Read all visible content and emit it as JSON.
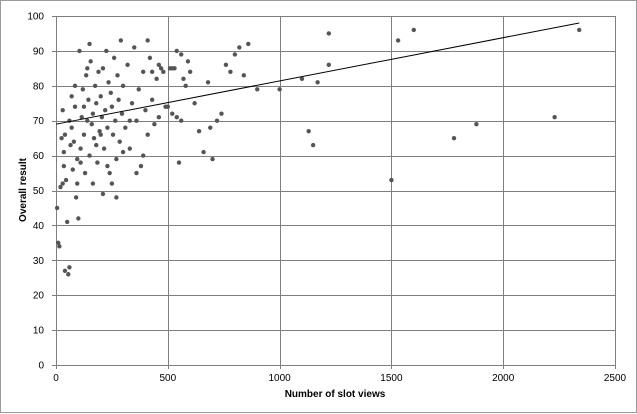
{
  "chart_data": {
    "type": "scatter",
    "title": "",
    "xlabel": "Number of slot views",
    "ylabel": "Overall result",
    "xlim": [
      0,
      2500
    ],
    "ylim": [
      0,
      100
    ],
    "xticks": [
      0,
      500,
      1000,
      1500,
      2000,
      2500
    ],
    "yticks": [
      0,
      10,
      20,
      30,
      40,
      50,
      60,
      70,
      80,
      90,
      100
    ],
    "grid": true,
    "legend": "none",
    "point_color": "#555555",
    "trendline": {
      "x": [
        0,
        2340
      ],
      "y": [
        69,
        98
      ]
    },
    "series": [
      {
        "points": [
          [
            5,
            45
          ],
          [
            10,
            35
          ],
          [
            15,
            34
          ],
          [
            20,
            51
          ],
          [
            25,
            65
          ],
          [
            30,
            73
          ],
          [
            35,
            57
          ],
          [
            40,
            27
          ],
          [
            45,
            53
          ],
          [
            50,
            41
          ],
          [
            55,
            26
          ],
          [
            60,
            28
          ],
          [
            65,
            63
          ],
          [
            70,
            68
          ],
          [
            75,
            56
          ],
          [
            80,
            64
          ],
          [
            85,
            74
          ],
          [
            90,
            48
          ],
          [
            95,
            59
          ],
          [
            100,
            42
          ],
          [
            105,
            90
          ],
          [
            110,
            62
          ],
          [
            115,
            71
          ],
          [
            120,
            79
          ],
          [
            125,
            66
          ],
          [
            130,
            55
          ],
          [
            135,
            83
          ],
          [
            140,
            70
          ],
          [
            145,
            76
          ],
          [
            150,
            60
          ],
          [
            155,
            87
          ],
          [
            160,
            69
          ],
          [
            165,
            72
          ],
          [
            170,
            65
          ],
          [
            175,
            80
          ],
          [
            180,
            75
          ],
          [
            185,
            58
          ],
          [
            190,
            84
          ],
          [
            195,
            67
          ],
          [
            200,
            77
          ],
          [
            205,
            71
          ],
          [
            210,
            85
          ],
          [
            215,
            62
          ],
          [
            220,
            73
          ],
          [
            225,
            90
          ],
          [
            230,
            68
          ],
          [
            235,
            81
          ],
          [
            240,
            55
          ],
          [
            245,
            78
          ],
          [
            250,
            74
          ],
          [
            255,
            66
          ],
          [
            260,
            88
          ],
          [
            265,
            70
          ],
          [
            270,
            59
          ],
          [
            275,
            83
          ],
          [
            280,
            76
          ],
          [
            285,
            64
          ],
          [
            290,
            93
          ],
          [
            295,
            72
          ],
          [
            300,
            80
          ],
          [
            310,
            68
          ],
          [
            320,
            86
          ],
          [
            330,
            62
          ],
          [
            340,
            75
          ],
          [
            350,
            91
          ],
          [
            360,
            70
          ],
          [
            370,
            79
          ],
          [
            380,
            57
          ],
          [
            390,
            84
          ],
          [
            400,
            73
          ],
          [
            410,
            66
          ],
          [
            420,
            88
          ],
          [
            430,
            76
          ],
          [
            440,
            69
          ],
          [
            450,
            82
          ],
          [
            460,
            86
          ],
          [
            470,
            85
          ],
          [
            480,
            84
          ],
          [
            500,
            74
          ],
          [
            510,
            85
          ],
          [
            520,
            72
          ],
          [
            530,
            85
          ],
          [
            540,
            90
          ],
          [
            550,
            58
          ],
          [
            560,
            89
          ],
          [
            570,
            82
          ],
          [
            580,
            80
          ],
          [
            600,
            84
          ],
          [
            620,
            75
          ],
          [
            640,
            67
          ],
          [
            660,
            61
          ],
          [
            680,
            81
          ],
          [
            690,
            68
          ],
          [
            700,
            59
          ],
          [
            720,
            70
          ],
          [
            740,
            72
          ],
          [
            760,
            86
          ],
          [
            780,
            84
          ],
          [
            800,
            89
          ],
          [
            820,
            91
          ],
          [
            840,
            83
          ],
          [
            860,
            92
          ],
          [
            900,
            79
          ],
          [
            1000,
            79
          ],
          [
            1100,
            82
          ],
          [
            1130,
            67
          ],
          [
            1150,
            63
          ],
          [
            1170,
            81
          ],
          [
            1220,
            86
          ],
          [
            1220,
            95
          ],
          [
            1500,
            53
          ],
          [
            1530,
            93
          ],
          [
            1600,
            96
          ],
          [
            1780,
            65
          ],
          [
            1880,
            69
          ],
          [
            2230,
            71
          ],
          [
            2340,
            96
          ],
          [
            30,
            52
          ],
          [
            35,
            61
          ],
          [
            40,
            66
          ],
          [
            60,
            70
          ],
          [
            70,
            77
          ],
          [
            85,
            80
          ],
          [
            95,
            52
          ],
          [
            110,
            58
          ],
          [
            125,
            74
          ],
          [
            140,
            85
          ],
          [
            150,
            92
          ],
          [
            165,
            52
          ],
          [
            180,
            63
          ],
          [
            200,
            66
          ],
          [
            210,
            49
          ],
          [
            230,
            57
          ],
          [
            250,
            52
          ],
          [
            270,
            48
          ],
          [
            300,
            61
          ],
          [
            330,
            70
          ],
          [
            360,
            55
          ],
          [
            390,
            60
          ],
          [
            410,
            93
          ],
          [
            430,
            84
          ],
          [
            460,
            71
          ],
          [
            490,
            74
          ],
          [
            520,
            85
          ],
          [
            540,
            71
          ],
          [
            560,
            70
          ],
          [
            590,
            87
          ]
        ]
      }
    ]
  }
}
